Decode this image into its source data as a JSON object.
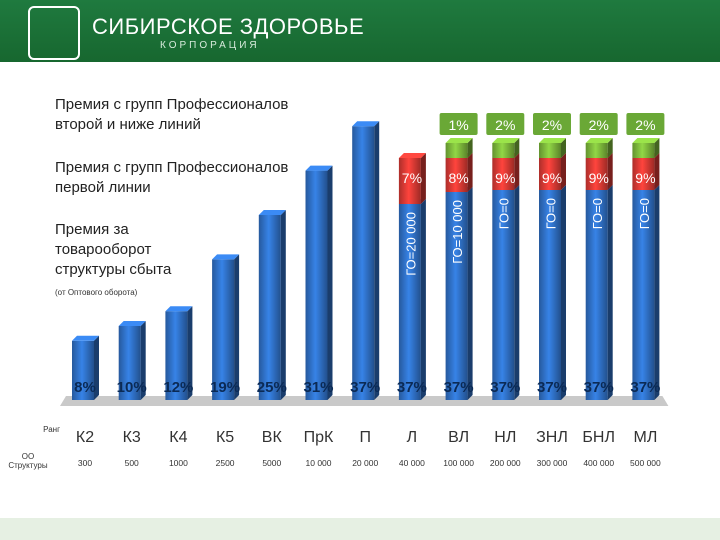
{
  "header": {
    "brand_name": "СИБИРСКОЕ ЗДОРОВЬЕ",
    "brand_sub": "КОРПОРАЦИЯ",
    "colors": {
      "header": "#1f7a3f"
    }
  },
  "legend": {
    "tier3": "Премия с групп Профессионалов\nвторой и ниже линий",
    "tier2": "Премия с групп Профессионалов\nпервой линии",
    "tier1": "Премия за\nтоваро­оборот\nструктуры сбыта",
    "tier1_note": "(от Оптового оборота)"
  },
  "row_labels": {
    "rank": "Ранг",
    "oo": "ОО\nСтруктуры"
  },
  "chart_data": {
    "type": "bar",
    "stacked": true,
    "categories": [
      "К2",
      "К3",
      "К4",
      "К5",
      "ВК",
      "ПрК",
      "П",
      "Л",
      "ВЛ",
      "НЛ",
      "ЗНЛ",
      "БНЛ",
      "МЛ"
    ],
    "oo": [
      "300",
      "500",
      "1000",
      "2500",
      "5000",
      "10 000",
      "20 000",
      "40 000",
      "100 000",
      "200 000",
      "300 000",
      "400 000",
      "500 000"
    ],
    "series": [
      {
        "values": [
          8,
          10,
          12,
          19,
          25,
          31,
          37,
          37,
          37,
          37,
          37,
          37,
          37
        ],
        "labels": [
          "8%",
          "10%",
          "12%",
          "19%",
          "25%",
          "31%",
          "37%",
          "37%",
          "37%",
          "37%",
          "37%",
          "37%",
          "37%"
        ],
        "color": "#2f6fc4"
      },
      {
        "values": [
          0,
          0,
          0,
          0,
          0,
          0,
          0,
          7,
          8,
          9,
          9,
          9,
          9
        ],
        "labels": [
          "",
          "",
          "",
          "",
          "",
          "",
          "",
          "7%",
          "8%",
          "9%",
          "9%",
          "9%",
          "9%"
        ],
        "color": "#d83a34"
      },
      {
        "values": [
          0,
          0,
          0,
          0,
          0,
          0,
          0,
          0,
          1,
          2,
          2,
          2,
          2
        ],
        "labels": [
          "",
          "",
          "",
          "",
          "",
          "",
          "",
          "",
          "1%",
          "2%",
          "2%",
          "2%",
          "2%"
        ],
        "color": "#7cb63b"
      }
    ],
    "go_labels": [
      "",
      "",
      "",
      "",
      "",
      "",
      "",
      "ГО=20 000",
      "ГО=10 000",
      "ГО=0",
      "ГО=0",
      "ГО=0",
      "ГО=0"
    ]
  }
}
